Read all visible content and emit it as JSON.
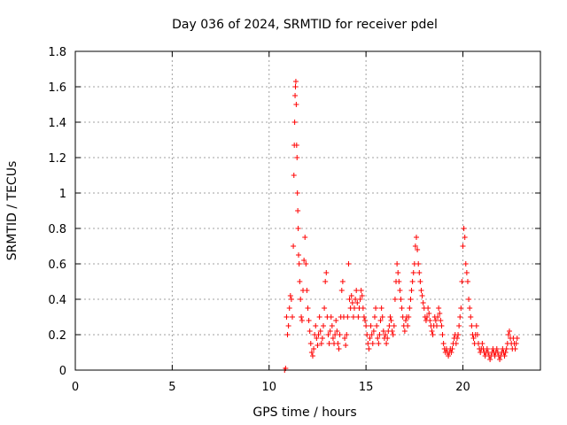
{
  "chart_data": {
    "type": "scatter",
    "title": "Day 036 of 2024, SRMTID for receiver pdel",
    "xlabel": "GPS time / hours",
    "ylabel": "SRMTID / TECUs",
    "xlim": [
      0,
      24
    ],
    "ylim": [
      0,
      1.8
    ],
    "xticks": [
      0,
      5,
      10,
      15,
      20
    ],
    "yticks": [
      0,
      0.2,
      0.4,
      0.6,
      0.8,
      1,
      1.2,
      1.4,
      1.6,
      1.8
    ],
    "ytick_labels": [
      "0",
      "0.2",
      "0.4",
      "0.6",
      "0.8",
      "1",
      "1.2",
      "1.4",
      "1.6",
      "1.8"
    ],
    "grid": true,
    "marker": "+",
    "color": "#ff0000",
    "series": [
      {
        "name": "SRMTID",
        "points": [
          [
            10.8,
            0.0
          ],
          [
            10.85,
            0.01
          ],
          [
            10.9,
            0.3
          ],
          [
            10.95,
            0.2
          ],
          [
            11.0,
            0.25
          ],
          [
            11.05,
            0.35
          ],
          [
            11.1,
            0.42
          ],
          [
            11.15,
            0.4
          ],
          [
            11.2,
            0.3
          ],
          [
            11.25,
            0.7
          ],
          [
            11.28,
            1.1
          ],
          [
            11.3,
            1.27
          ],
          [
            11.32,
            1.4
          ],
          [
            11.34,
            1.55
          ],
          [
            11.36,
            1.6
          ],
          [
            11.38,
            1.63
          ],
          [
            11.4,
            1.5
          ],
          [
            11.42,
            1.27
          ],
          [
            11.44,
            1.2
          ],
          [
            11.46,
            1.0
          ],
          [
            11.48,
            0.9
          ],
          [
            11.5,
            0.8
          ],
          [
            11.52,
            0.65
          ],
          [
            11.55,
            0.6
          ],
          [
            11.58,
            0.5
          ],
          [
            11.62,
            0.4
          ],
          [
            11.66,
            0.3
          ],
          [
            11.7,
            0.28
          ],
          [
            11.75,
            0.45
          ],
          [
            11.8,
            0.62
          ],
          [
            11.85,
            0.75
          ],
          [
            11.9,
            0.6
          ],
          [
            11.95,
            0.45
          ],
          [
            12.0,
            0.35
          ],
          [
            12.05,
            0.28
          ],
          [
            12.1,
            0.22
          ],
          [
            12.15,
            0.15
          ],
          [
            12.2,
            0.1
          ],
          [
            12.25,
            0.08
          ],
          [
            12.3,
            0.12
          ],
          [
            12.35,
            0.2
          ],
          [
            12.4,
            0.25
          ],
          [
            12.45,
            0.18
          ],
          [
            12.5,
            0.14
          ],
          [
            12.55,
            0.2
          ],
          [
            12.6,
            0.3
          ],
          [
            12.65,
            0.22
          ],
          [
            12.7,
            0.15
          ],
          [
            12.75,
            0.18
          ],
          [
            12.8,
            0.25
          ],
          [
            12.85,
            0.35
          ],
          [
            12.9,
            0.5
          ],
          [
            12.95,
            0.55
          ],
          [
            13.0,
            0.3
          ],
          [
            13.05,
            0.2
          ],
          [
            13.1,
            0.15
          ],
          [
            13.15,
            0.22
          ],
          [
            13.2,
            0.3
          ],
          [
            13.25,
            0.25
          ],
          [
            13.3,
            0.18
          ],
          [
            13.35,
            0.15
          ],
          [
            13.4,
            0.2
          ],
          [
            13.45,
            0.28
          ],
          [
            13.5,
            0.22
          ],
          [
            13.55,
            0.15
          ],
          [
            13.6,
            0.12
          ],
          [
            13.65,
            0.2
          ],
          [
            13.7,
            0.3
          ],
          [
            13.75,
            0.45
          ],
          [
            13.8,
            0.5
          ],
          [
            13.85,
            0.3
          ],
          [
            13.9,
            0.18
          ],
          [
            13.95,
            0.14
          ],
          [
            14.0,
            0.2
          ],
          [
            14.05,
            0.3
          ],
          [
            14.1,
            0.6
          ],
          [
            14.15,
            0.4
          ],
          [
            14.2,
            0.35
          ],
          [
            14.25,
            0.42
          ],
          [
            14.3,
            0.38
          ],
          [
            14.35,
            0.3
          ],
          [
            14.4,
            0.35
          ],
          [
            14.45,
            0.4
          ],
          [
            14.5,
            0.45
          ],
          [
            14.55,
            0.38
          ],
          [
            14.6,
            0.3
          ],
          [
            14.65,
            0.35
          ],
          [
            14.7,
            0.4
          ],
          [
            14.75,
            0.45
          ],
          [
            14.8,
            0.42
          ],
          [
            14.85,
            0.35
          ],
          [
            14.9,
            0.3
          ],
          [
            14.95,
            0.28
          ],
          [
            15.0,
            0.25
          ],
          [
            15.05,
            0.2
          ],
          [
            15.1,
            0.15
          ],
          [
            15.15,
            0.12
          ],
          [
            15.2,
            0.18
          ],
          [
            15.25,
            0.25
          ],
          [
            15.3,
            0.2
          ],
          [
            15.35,
            0.15
          ],
          [
            15.4,
            0.22
          ],
          [
            15.45,
            0.3
          ],
          [
            15.5,
            0.35
          ],
          [
            15.55,
            0.25
          ],
          [
            15.6,
            0.18
          ],
          [
            15.65,
            0.15
          ],
          [
            15.7,
            0.2
          ],
          [
            15.75,
            0.28
          ],
          [
            15.8,
            0.35
          ],
          [
            15.85,
            0.3
          ],
          [
            15.9,
            0.22
          ],
          [
            15.95,
            0.18
          ],
          [
            16.0,
            0.2
          ],
          [
            16.05,
            0.15
          ],
          [
            16.1,
            0.18
          ],
          [
            16.15,
            0.22
          ],
          [
            16.2,
            0.25
          ],
          [
            16.25,
            0.3
          ],
          [
            16.3,
            0.28
          ],
          [
            16.35,
            0.22
          ],
          [
            16.4,
            0.2
          ],
          [
            16.45,
            0.25
          ],
          [
            16.5,
            0.4
          ],
          [
            16.55,
            0.5
          ],
          [
            16.6,
            0.6
          ],
          [
            16.65,
            0.55
          ],
          [
            16.7,
            0.5
          ],
          [
            16.75,
            0.45
          ],
          [
            16.8,
            0.4
          ],
          [
            16.85,
            0.35
          ],
          [
            16.9,
            0.3
          ],
          [
            16.95,
            0.25
          ],
          [
            17.0,
            0.22
          ],
          [
            17.05,
            0.28
          ],
          [
            17.1,
            0.3
          ],
          [
            17.15,
            0.25
          ],
          [
            17.2,
            0.3
          ],
          [
            17.25,
            0.35
          ],
          [
            17.3,
            0.4
          ],
          [
            17.35,
            0.45
          ],
          [
            17.4,
            0.5
          ],
          [
            17.45,
            0.55
          ],
          [
            17.5,
            0.6
          ],
          [
            17.55,
            0.7
          ],
          [
            17.6,
            0.75
          ],
          [
            17.65,
            0.68
          ],
          [
            17.7,
            0.6
          ],
          [
            17.75,
            0.55
          ],
          [
            17.8,
            0.5
          ],
          [
            17.85,
            0.45
          ],
          [
            17.9,
            0.42
          ],
          [
            17.95,
            0.38
          ],
          [
            18.0,
            0.35
          ],
          [
            18.05,
            0.3
          ],
          [
            18.1,
            0.28
          ],
          [
            18.15,
            0.3
          ],
          [
            18.2,
            0.35
          ],
          [
            18.25,
            0.32
          ],
          [
            18.3,
            0.28
          ],
          [
            18.35,
            0.25
          ],
          [
            18.4,
            0.22
          ],
          [
            18.45,
            0.2
          ],
          [
            18.5,
            0.25
          ],
          [
            18.55,
            0.3
          ],
          [
            18.6,
            0.28
          ],
          [
            18.65,
            0.25
          ],
          [
            18.7,
            0.3
          ],
          [
            18.75,
            0.35
          ],
          [
            18.8,
            0.32
          ],
          [
            18.85,
            0.28
          ],
          [
            18.9,
            0.25
          ],
          [
            18.95,
            0.2
          ],
          [
            19.0,
            0.15
          ],
          [
            19.05,
            0.12
          ],
          [
            19.1,
            0.1
          ],
          [
            19.15,
            0.12
          ],
          [
            19.2,
            0.1
          ],
          [
            19.25,
            0.08
          ],
          [
            19.3,
            0.1
          ],
          [
            19.35,
            0.12
          ],
          [
            19.4,
            0.1
          ],
          [
            19.45,
            0.12
          ],
          [
            19.5,
            0.15
          ],
          [
            19.55,
            0.18
          ],
          [
            19.6,
            0.2
          ],
          [
            19.65,
            0.15
          ],
          [
            19.7,
            0.18
          ],
          [
            19.75,
            0.2
          ],
          [
            19.8,
            0.25
          ],
          [
            19.85,
            0.3
          ],
          [
            19.9,
            0.35
          ],
          [
            19.95,
            0.5
          ],
          [
            20.0,
            0.7
          ],
          [
            20.05,
            0.8
          ],
          [
            20.1,
            0.75
          ],
          [
            20.15,
            0.6
          ],
          [
            20.2,
            0.55
          ],
          [
            20.25,
            0.5
          ],
          [
            20.3,
            0.4
          ],
          [
            20.35,
            0.35
          ],
          [
            20.4,
            0.3
          ],
          [
            20.45,
            0.25
          ],
          [
            20.5,
            0.2
          ],
          [
            20.55,
            0.18
          ],
          [
            20.6,
            0.15
          ],
          [
            20.65,
            0.2
          ],
          [
            20.7,
            0.25
          ],
          [
            20.75,
            0.2
          ],
          [
            20.8,
            0.15
          ],
          [
            20.85,
            0.12
          ],
          [
            20.9,
            0.1
          ],
          [
            20.95,
            0.12
          ],
          [
            21.0,
            0.15
          ],
          [
            21.05,
            0.12
          ],
          [
            21.1,
            0.1
          ],
          [
            21.15,
            0.08
          ],
          [
            21.2,
            0.1
          ],
          [
            21.25,
            0.12
          ],
          [
            21.3,
            0.1
          ],
          [
            21.35,
            0.08
          ],
          [
            21.4,
            0.06
          ],
          [
            21.45,
            0.08
          ],
          [
            21.5,
            0.1
          ],
          [
            21.55,
            0.12
          ],
          [
            21.6,
            0.1
          ],
          [
            21.65,
            0.08
          ],
          [
            21.7,
            0.1
          ],
          [
            21.75,
            0.12
          ],
          [
            21.8,
            0.1
          ],
          [
            21.85,
            0.08
          ],
          [
            21.9,
            0.06
          ],
          [
            21.95,
            0.08
          ],
          [
            22.0,
            0.1
          ],
          [
            22.05,
            0.12
          ],
          [
            22.1,
            0.1
          ],
          [
            22.15,
            0.08
          ],
          [
            22.2,
            0.1
          ],
          [
            22.25,
            0.12
          ],
          [
            22.3,
            0.15
          ],
          [
            22.35,
            0.2
          ],
          [
            22.4,
            0.22
          ],
          [
            22.45,
            0.18
          ],
          [
            22.5,
            0.15
          ],
          [
            22.55,
            0.12
          ],
          [
            22.6,
            0.18
          ],
          [
            22.65,
            0.15
          ],
          [
            22.7,
            0.12
          ],
          [
            22.75,
            0.15
          ],
          [
            22.8,
            0.18
          ]
        ]
      }
    ]
  }
}
